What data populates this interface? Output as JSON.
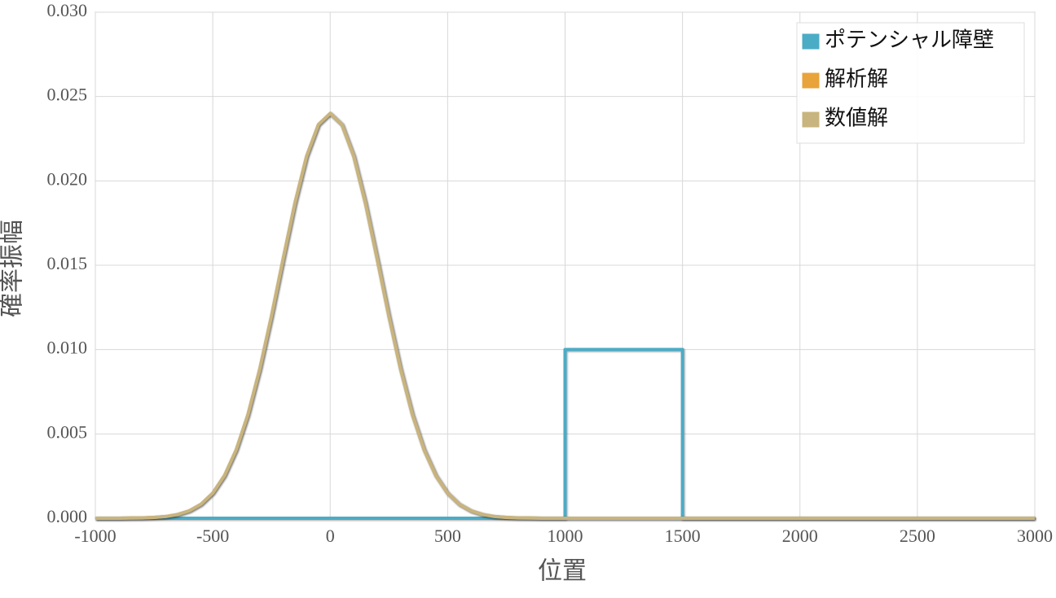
{
  "chart_data": {
    "type": "line",
    "x_label": "位置",
    "y_label": "確率振幅",
    "xlim": [
      -1000,
      3000
    ],
    "ylim": [
      0,
      0.03
    ],
    "xticks": [
      -1000,
      -500,
      0,
      500,
      1000,
      1500,
      2000,
      2500,
      3000
    ],
    "yticks": [
      {
        "value": 0,
        "label": "0.000"
      },
      {
        "value": 0.005,
        "label": "0.005"
      },
      {
        "value": 0.01,
        "label": "0.010"
      },
      {
        "value": 0.015,
        "label": "0.015"
      },
      {
        "value": 0.02,
        "label": "0.020"
      },
      {
        "value": 0.025,
        "label": "0.025"
      },
      {
        "value": 0.03,
        "label": "0.030"
      }
    ],
    "grid": true,
    "legend": "top-right",
    "series": [
      {
        "name": "ポテンシャル障壁",
        "color": "#4bacc6",
        "x": [
          -1000,
          1000,
          1000,
          1500,
          1500,
          3000
        ],
        "values": [
          0,
          0,
          0.01,
          0.01,
          0,
          0
        ]
      },
      {
        "name": "解析解",
        "color": "#e8a33a",
        "x": [
          -1000,
          -950,
          -900,
          -850,
          -800,
          -750,
          -700,
          -650,
          -600,
          -550,
          -500,
          -450,
          -400,
          -350,
          -300,
          -250,
          -200,
          -150,
          -100,
          -50,
          0,
          50,
          100,
          150,
          200,
          250,
          300,
          350,
          400,
          450,
          500,
          550,
          600,
          650,
          700,
          750,
          800,
          850,
          900,
          950,
          1000,
          3000
        ],
        "values": [
          0,
          0,
          0,
          1e-05,
          2e-05,
          5e-05,
          0.0001,
          0.00022,
          0.00044,
          0.00083,
          0.00149,
          0.00253,
          0.00406,
          0.00615,
          0.00883,
          0.01198,
          0.01539,
          0.01869,
          0.02148,
          0.02334,
          0.024,
          0.02334,
          0.02148,
          0.01869,
          0.01539,
          0.01198,
          0.00883,
          0.00615,
          0.00406,
          0.00253,
          0.00149,
          0.00083,
          0.00044,
          0.00022,
          0.0001,
          5e-05,
          2e-05,
          1e-05,
          0,
          0,
          0,
          0
        ]
      },
      {
        "name": "数値解",
        "color": "#c8b47e",
        "x": [
          -1000,
          -950,
          -900,
          -850,
          -800,
          -750,
          -700,
          -650,
          -600,
          -550,
          -500,
          -450,
          -400,
          -350,
          -300,
          -250,
          -200,
          -150,
          -100,
          -50,
          0,
          50,
          100,
          150,
          200,
          250,
          300,
          350,
          400,
          450,
          500,
          550,
          600,
          650,
          700,
          750,
          800,
          850,
          900,
          950,
          1000,
          3000
        ],
        "values": [
          0,
          0,
          0,
          1e-05,
          2e-05,
          5e-05,
          0.0001,
          0.00022,
          0.00044,
          0.00083,
          0.00149,
          0.00253,
          0.00406,
          0.00615,
          0.00883,
          0.01198,
          0.01539,
          0.01869,
          0.02148,
          0.02334,
          0.024,
          0.02334,
          0.02148,
          0.01869,
          0.01539,
          0.01198,
          0.00883,
          0.00615,
          0.00406,
          0.00253,
          0.00149,
          0.00083,
          0.00044,
          0.00022,
          0.0001,
          5e-05,
          2e-05,
          1e-05,
          0,
          0,
          0,
          0
        ]
      }
    ]
  }
}
